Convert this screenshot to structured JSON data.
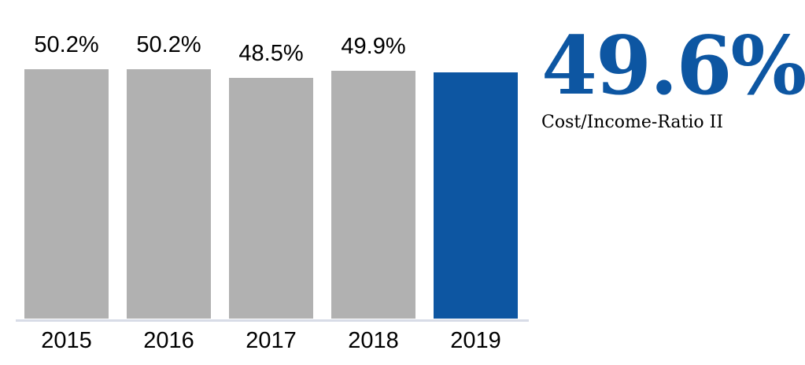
{
  "chart_data": {
    "type": "bar",
    "title": "",
    "xlabel": "",
    "ylabel": "",
    "unit": "%",
    "categories": [
      "2015",
      "2016",
      "2017",
      "2018",
      "2019"
    ],
    "values": [
      50.2,
      50.2,
      48.5,
      49.9,
      49.6
    ],
    "bar_labels": [
      "50.2%",
      "50.2%",
      "48.5%",
      "49.9%",
      ""
    ],
    "highlight_index": 4,
    "bar_color": "#b1b1b1",
    "highlight_color": "#0d56a2",
    "axis_line_color": "#d8dce7",
    "ylim": [
      0,
      50.2
    ],
    "grid": false,
    "legend": false
  },
  "callout": {
    "value": "49.6%",
    "label": "Cost/Income-Ratio II",
    "color": "#0d56a2"
  }
}
